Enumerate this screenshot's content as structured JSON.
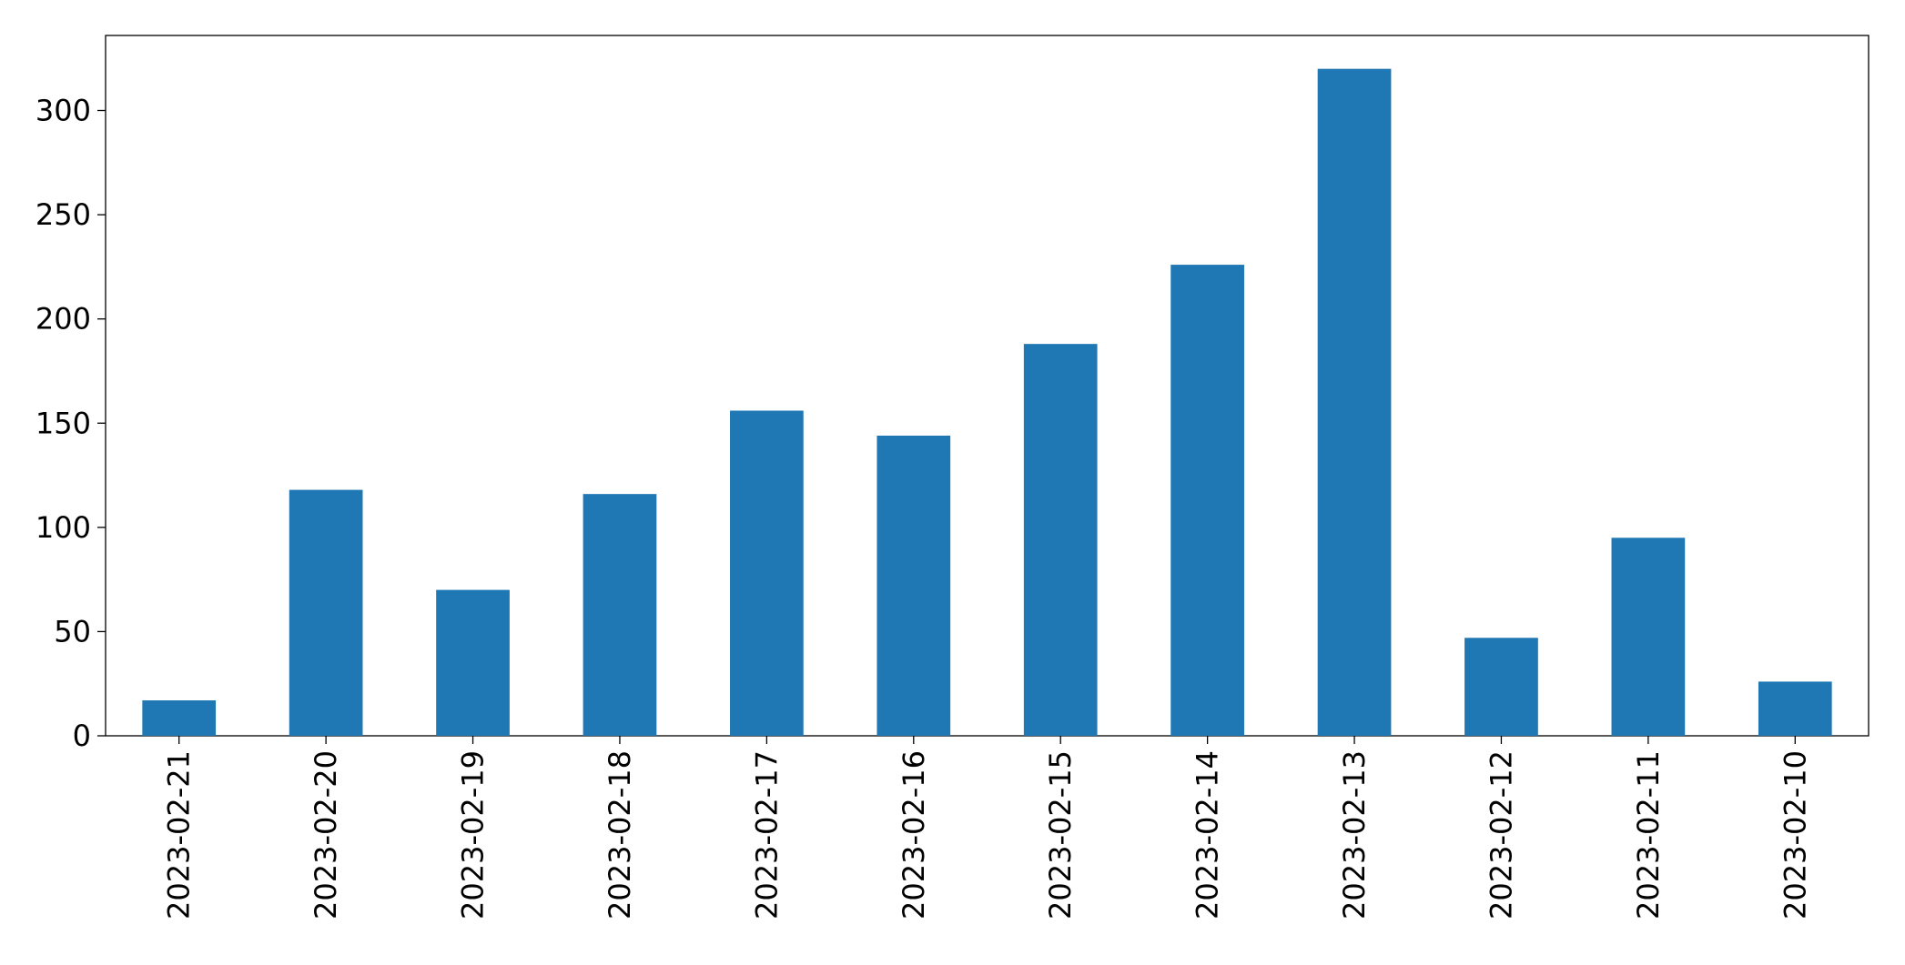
{
  "chart_data": {
    "type": "bar",
    "categories": [
      "2023-02-21",
      "2023-02-20",
      "2023-02-19",
      "2023-02-18",
      "2023-02-17",
      "2023-02-16",
      "2023-02-15",
      "2023-02-14",
      "2023-02-13",
      "2023-02-12",
      "2023-02-11",
      "2023-02-10"
    ],
    "values": [
      17,
      118,
      70,
      116,
      156,
      144,
      188,
      226,
      320,
      47,
      95,
      26
    ],
    "color": "#1f77b4",
    "ylim": [
      0,
      336
    ],
    "yticks": [
      0,
      50,
      100,
      150,
      200,
      250,
      300
    ],
    "grid": false
  }
}
